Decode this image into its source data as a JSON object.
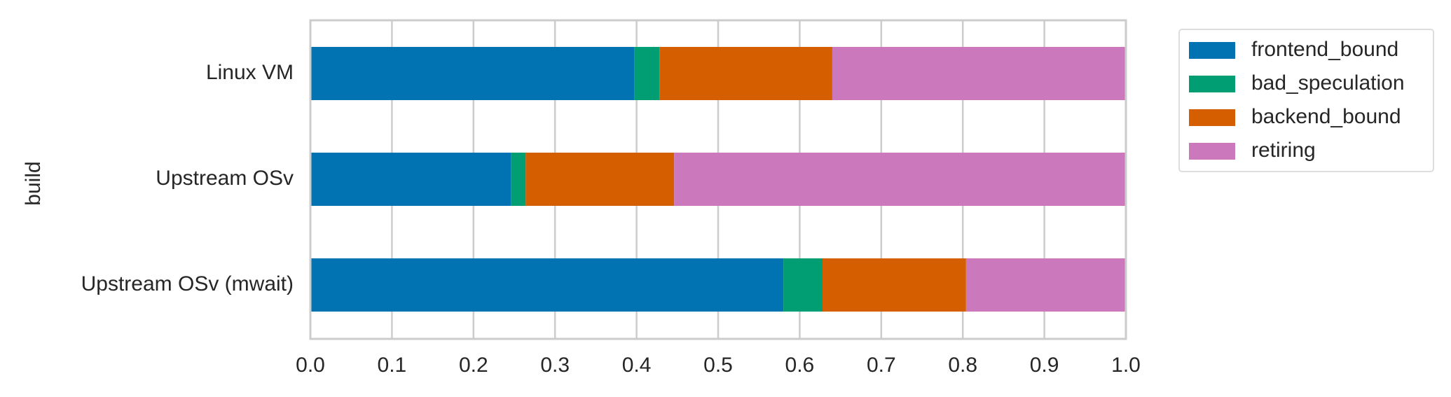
{
  "chart_data": {
    "type": "bar",
    "orientation": "horizontal",
    "stacked": true,
    "ylabel": "build",
    "xlabel": "",
    "xlim": [
      0.0,
      1.0
    ],
    "xticks": [
      "0.0",
      "0.1",
      "0.2",
      "0.3",
      "0.4",
      "0.5",
      "0.6",
      "0.7",
      "0.8",
      "0.9",
      "1.0"
    ],
    "grid": true,
    "legend_position": "outside right, top",
    "categories": [
      "Linux VM",
      "Upstream OSv",
      "Upstream OSv (mwait)"
    ],
    "series": [
      {
        "name": "frontend_bound",
        "color": "#0173b2",
        "values": [
          0.397,
          0.246,
          0.58
        ]
      },
      {
        "name": "bad_speculation",
        "color": "#029e73",
        "values": [
          0.031,
          0.018,
          0.048
        ]
      },
      {
        "name": "backend_bound",
        "color": "#d55e00",
        "values": [
          0.212,
          0.182,
          0.176
        ]
      },
      {
        "name": "retiring",
        "color": "#cc78bc",
        "values": [
          0.36,
          0.554,
          0.196
        ]
      }
    ]
  }
}
